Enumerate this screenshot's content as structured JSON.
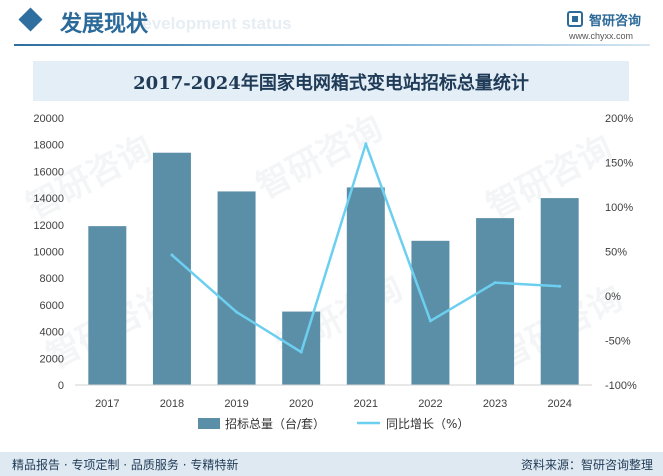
{
  "header": {
    "section_title": "发展现状",
    "section_title_en": "Development status",
    "logo_name": "智研咨询",
    "logo_url": "www.chyxx.com",
    "accent_color": "#2b6a99"
  },
  "watermark_text": "智研咨询",
  "chart_data": {
    "type": "bar+line",
    "title": "2017-2024年国家电网箱式变电站招标总量统计",
    "categories": [
      "2017",
      "2018",
      "2019",
      "2020",
      "2021",
      "2022",
      "2023",
      "2024"
    ],
    "series": [
      {
        "name": "招标总量（台/套）",
        "type": "bar",
        "axis": "left",
        "color": "#5b8fa8",
        "values": [
          11900,
          17400,
          14500,
          5500,
          14800,
          10800,
          12500,
          14000
        ]
      },
      {
        "name": "同比增长（%）",
        "type": "line",
        "axis": "right",
        "color": "#6dcff0",
        "values": [
          null,
          46,
          -18,
          -63,
          171,
          -28,
          15,
          11
        ]
      }
    ],
    "y_left": {
      "min": 0,
      "max": 20000,
      "ticks": [
        "0",
        "2000",
        "4000",
        "6000",
        "8000",
        "10000",
        "12000",
        "14000",
        "16000",
        "18000",
        "20000"
      ]
    },
    "y_right": {
      "min": -100,
      "max": 200,
      "ticks": [
        "-100%",
        "-50%",
        "0%",
        "50%",
        "100%",
        "150%",
        "200%"
      ]
    },
    "grid": false,
    "legend_position": "bottom"
  },
  "footer": {
    "left": "精品报告 · 专项定制 · 品质服务 · 专精特新",
    "right": "资料来源：智研咨询整理"
  }
}
